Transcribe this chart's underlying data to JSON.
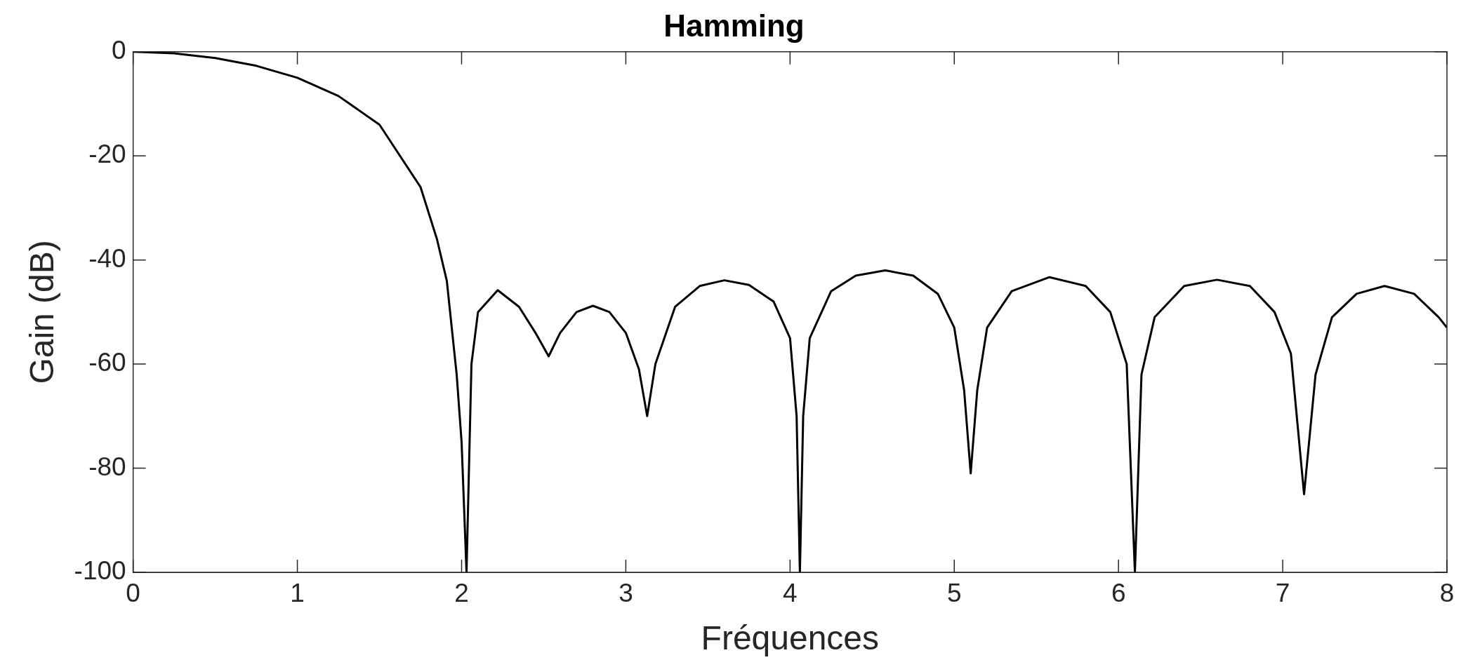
{
  "chart_data": {
    "type": "line",
    "title": "Hamming",
    "xlabel": "Fréquences",
    "ylabel": "Gain (dB)",
    "xlim": [
      0,
      8
    ],
    "xticks": [
      0,
      1,
      2,
      3,
      4,
      5,
      6,
      7,
      8
    ],
    "ylim": [
      -100,
      0
    ],
    "yticks": [
      -100,
      -80,
      -60,
      -40,
      -20,
      0
    ],
    "grid": false,
    "marker": "none",
    "line_style": "solid",
    "series": [
      {
        "color": "#000000",
        "x": [
          0,
          0.25,
          0.5,
          0.75,
          1,
          1.25,
          1.5,
          1.75,
          1.85,
          1.91,
          1.97,
          2.0,
          2.03,
          2.06,
          2.1,
          2.22,
          2.35,
          2.45,
          2.53,
          2.6,
          2.7,
          2.8,
          2.9,
          3.0,
          3.08,
          3.13,
          3.18,
          3.3,
          3.45,
          3.6,
          3.75,
          3.9,
          4.0,
          4.04,
          4.06,
          4.08,
          4.12,
          4.25,
          4.4,
          4.58,
          4.75,
          4.9,
          5.0,
          5.06,
          5.1,
          5.14,
          5.2,
          5.35,
          5.58,
          5.8,
          5.95,
          6.05,
          6.1,
          6.14,
          6.22,
          6.4,
          6.6,
          6.8,
          6.95,
          7.05,
          7.13,
          7.2,
          7.3,
          7.45,
          7.62,
          7.8,
          7.95,
          8.0
        ],
        "values": [
          0,
          -0.3,
          -1.2,
          -2.7,
          -5,
          -8.5,
          -14,
          -26,
          -36,
          -44,
          -62,
          -75,
          -100,
          -60,
          -50,
          -45.8,
          -49,
          -54,
          -58.5,
          -54,
          -50,
          -48.8,
          -50,
          -54,
          -61,
          -70,
          -60,
          -49,
          -45,
          -43.9,
          -44.8,
          -48,
          -55,
          -70,
          -100,
          -70,
          -55,
          -46,
          -43,
          -42,
          -43,
          -46.5,
          -53,
          -65,
          -81,
          -65,
          -53,
          -46,
          -43.3,
          -45,
          -50,
          -60,
          -100,
          -62,
          -51,
          -45,
          -43.8,
          -45,
          -50,
          -58,
          -85,
          -62,
          -51,
          -46.5,
          -45,
          -46.5,
          -51,
          -53
        ]
      }
    ]
  }
}
